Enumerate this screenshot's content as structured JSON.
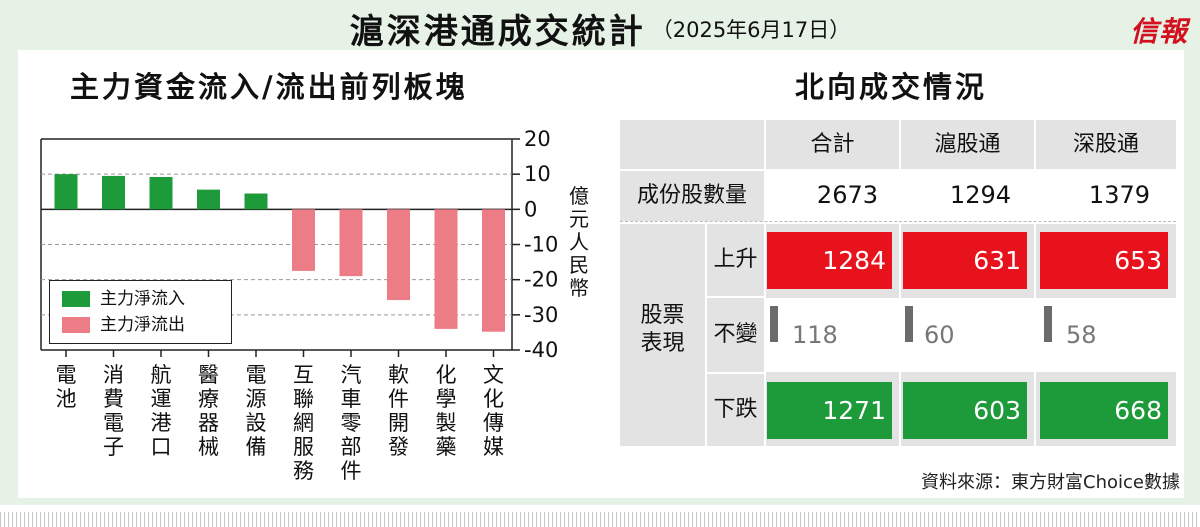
{
  "title": "滬深港通成交統計",
  "date": "（2025年6月17日）",
  "logo": "信報",
  "left_subtitle": "主力資金流入/流出前列板塊",
  "right_subtitle": "北向成交情況",
  "unit_label": "億元人民幣",
  "source": "資料來源：東方財富Choice數據",
  "colors": {
    "inflow": "#1d9a3a",
    "outflow": "#ec7c85",
    "up_box": "#e8121c",
    "down_box": "#1d9a3a",
    "frame": "#e6f2e6"
  },
  "chart_data": {
    "type": "bar",
    "categories": [
      "電池",
      "消費電子",
      "航運港口",
      "醫療器械",
      "電源設備",
      "互聯網服務",
      "汽車零部件",
      "軟件開發",
      "化學製藥",
      "文化傳媒"
    ],
    "series": [
      {
        "name": "主力淨流入",
        "values": [
          10.0,
          9.5,
          9.2,
          5.6,
          4.5,
          null,
          null,
          null,
          null,
          null
        ]
      },
      {
        "name": "主力淨流出",
        "values": [
          null,
          null,
          null,
          null,
          null,
          -17.5,
          -19.0,
          -25.8,
          -34.0,
          -34.8
        ]
      }
    ],
    "ylim": [
      -40,
      20
    ],
    "yticks": [
      "20",
      "10",
      "0",
      "-10",
      "-20",
      "-30",
      "-40"
    ],
    "ytick_values": [
      20,
      10,
      0,
      -10,
      -20,
      -30,
      -40
    ],
    "ylabel": "億元人民幣",
    "legend_position": "bottom-left",
    "grid": false
  },
  "table": {
    "columns": [
      "合計",
      "滬股通",
      "深股通"
    ],
    "constituents_label": "成份股數量",
    "constituents": [
      "2673",
      "1294",
      "1379"
    ],
    "performance_label": [
      "股票",
      "表現"
    ],
    "rows": [
      {
        "label": "上升",
        "values": [
          "1284",
          "631",
          "653"
        ]
      },
      {
        "label": "不變",
        "values": [
          "118",
          "60",
          "58"
        ]
      },
      {
        "label": "下跌",
        "values": [
          "1271",
          "603",
          "668"
        ]
      }
    ]
  }
}
